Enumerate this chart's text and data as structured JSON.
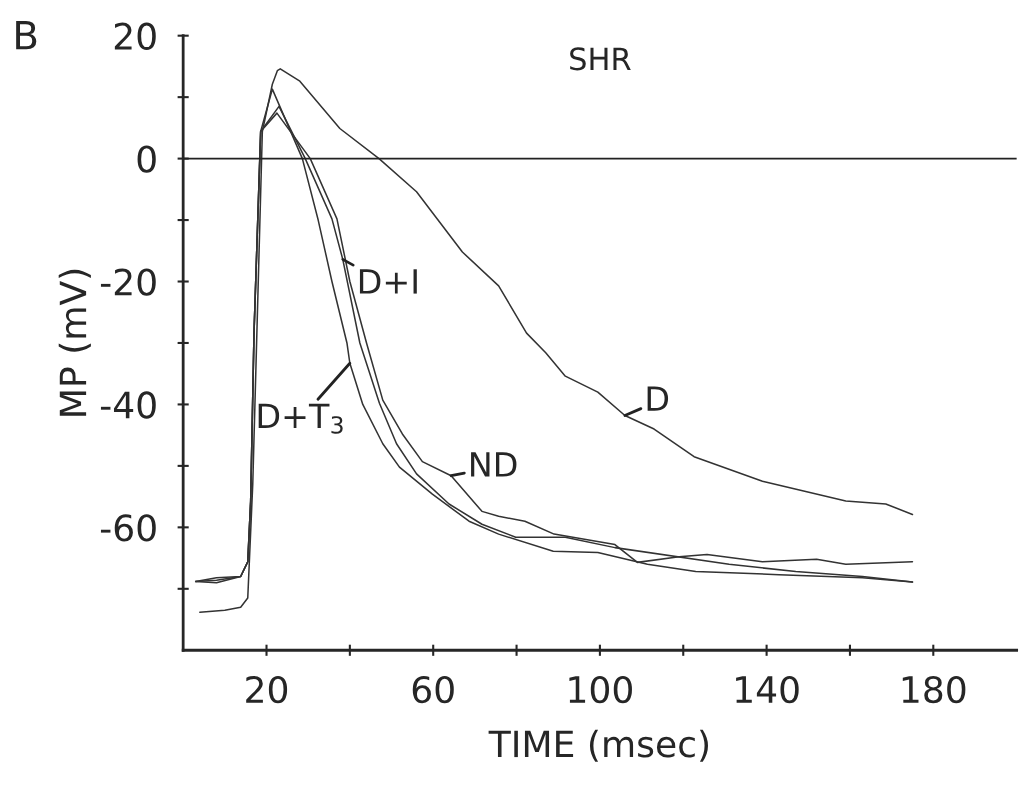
{
  "chart_data": {
    "type": "line",
    "title": "SHR",
    "xlabel": "TIME (msec)",
    "ylabel": "MP (mV)",
    "xlim": [
      0,
      200
    ],
    "ylim": [
      -80,
      20
    ],
    "xticks": [
      20,
      {
        "value": 40,
        "label": null
      },
      60,
      {
        "value": 80,
        "label": null
      },
      100,
      {
        "value": 120,
        "label": null
      },
      140,
      {
        "value": 160,
        "label": null
      },
      180
    ],
    "yticks": [
      20,
      {
        "value": 10,
        "label": null
      },
      0,
      {
        "value": -10,
        "label": null
      },
      {
        "value": -20,
        "label": "-20"
      },
      {
        "value": -30,
        "label": null
      },
      {
        "value": -40,
        "label": "-40"
      },
      {
        "value": -50,
        "label": null
      },
      {
        "value": -60,
        "label": "-60"
      },
      {
        "value": -70,
        "label": null
      }
    ],
    "grid": false,
    "legend": false,
    "marker": "none",
    "line_style": "solid",
    "ref_lines": [
      {
        "axis": "y",
        "value": 0,
        "color": "#222222",
        "line_style": "solid"
      }
    ],
    "series": [
      {
        "color": "#333333",
        "x": [
          4,
          10,
          13.8,
          15.5,
          16.7,
          19,
          21.4,
          22.6,
          23.3,
          28,
          37.6,
          47,
          56,
          67,
          75.7,
          82.4,
          87,
          91.7,
          99.5,
          106,
          113,
          122.6,
          139,
          159,
          168.6,
          175
        ],
        "values": [
          -73.8,
          -73.5,
          -73,
          -71.5,
          -53,
          4.4,
          12.1,
          14.3,
          14.6,
          12.6,
          4.9,
          0,
          -5.4,
          -15.2,
          -20.7,
          -28.4,
          -31.6,
          -35.4,
          -38,
          -41.8,
          -44,
          -48.5,
          -52.5,
          -55.7,
          -56.2,
          -57.9
        ]
      },
      {
        "color": "#333333",
        "x": [
          3,
          8,
          13.8,
          15.5,
          16.2,
          17,
          18.6,
          21.4,
          28.6,
          32.4,
          35.7,
          39.3,
          40,
          43.1,
          47.9,
          51.9,
          59.8,
          68.6,
          75.7,
          88.8,
          99.5,
          111.4,
          123,
          143,
          163,
          175
        ],
        "values": [
          -68.8,
          -68.6,
          -68,
          -65.6,
          -55.7,
          -28.4,
          4.4,
          11.3,
          0,
          -10,
          -20,
          -30,
          -33.3,
          -40,
          -46.4,
          -50.2,
          -54.6,
          -59,
          -61.1,
          -63.9,
          -64.1,
          -66,
          -67.2,
          -67.7,
          -68.2,
          -68.9
        ]
      },
      {
        "color": "#333333",
        "x": [
          3,
          8,
          13.8,
          15.5,
          16.2,
          17,
          18.6,
          23,
          29.3,
          35.7,
          38.3,
          42.4,
          47.1,
          51.2,
          56,
          63.8,
          71.7,
          79.8,
          91.7,
          103.6,
          131,
          147,
          163,
          175
        ],
        "values": [
          -68.8,
          -68.2,
          -68,
          -65.6,
          -55.7,
          -28.4,
          4.4,
          8.5,
          0,
          -9.8,
          -16.4,
          -30,
          -39.8,
          -46.4,
          -51.3,
          -56.2,
          -59.5,
          -61.6,
          -61.6,
          -63.3,
          -66,
          -67.2,
          -68,
          -68.9
        ]
      },
      {
        "color": "#333333",
        "x": [
          3,
          8,
          13.8,
          15.5,
          16.2,
          17,
          18.6,
          22.5,
          30.5,
          36.9,
          40,
          44,
          47.9,
          52.6,
          57.4,
          64.3,
          71.7,
          75.7,
          82,
          89,
          103.6,
          109,
          119,
          125.7,
          139,
          152,
          159,
          175
        ],
        "values": [
          -68.8,
          -69,
          -68,
          -65.6,
          -55.7,
          -28.4,
          4.4,
          7.4,
          0,
          -9.8,
          -20,
          -30,
          -39.3,
          -44.8,
          -49.3,
          -51.6,
          -57.4,
          -58.2,
          -59,
          -61.1,
          -62.8,
          -65.7,
          -64.8,
          -64.4,
          -65.6,
          -65.2,
          -66,
          -65.6
        ]
      }
    ],
    "annotations": [
      "B",
      {
        "text": "D",
        "x": 106,
        "y": -41.8
      },
      {
        "text": "D+I",
        "x": 38.3,
        "y": -16.4
      },
      {
        "text": "D+T$_{3}$",
        "x": 40,
        "y": -33.3
      },
      {
        "text": "ND",
        "x": 64.3,
        "y": -51.6
      }
    ]
  }
}
